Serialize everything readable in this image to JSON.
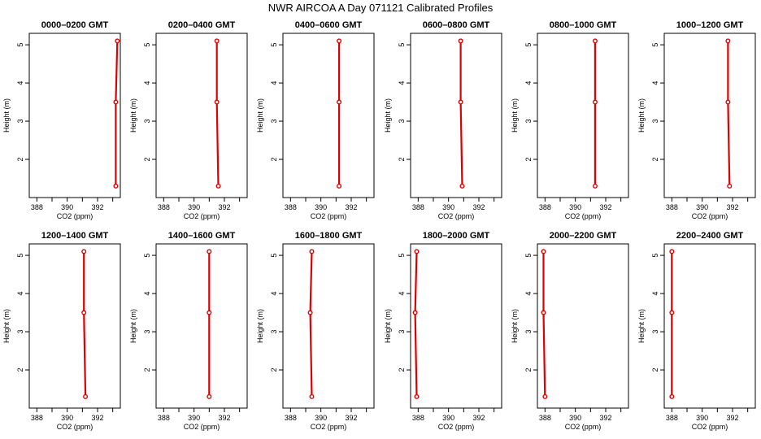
{
  "title": "NWR AIRCOA A  Day 071121  Calibrated Profiles",
  "colors": {
    "profile": "#dd0000",
    "axis": "#000000"
  },
  "chart_data": {
    "type": "line",
    "xlabel": "CO2 (ppm)",
    "ylabel": "Height (m)",
    "xlim": [
      387.5,
      393.5
    ],
    "ylim": [
      1.0,
      5.3
    ],
    "x_ticks": [
      388,
      390,
      392
    ],
    "y_ticks": [
      2,
      3,
      4,
      5
    ],
    "heights": [
      1.3,
      3.5,
      5.1
    ],
    "panels": [
      {
        "title": "0000–0200 GMT",
        "x": [
          393.2,
          393.2,
          393.3
        ]
      },
      {
        "title": "0200–0400 GMT",
        "x": [
          391.6,
          391.5,
          391.5
        ]
      },
      {
        "title": "0400–0600 GMT",
        "x": [
          391.2,
          391.2,
          391.2
        ]
      },
      {
        "title": "0600–0800 GMT",
        "x": [
          390.9,
          390.8,
          390.8
        ]
      },
      {
        "title": "0800–1000 GMT",
        "x": [
          391.3,
          391.3,
          391.3
        ]
      },
      {
        "title": "1000–1200 GMT",
        "x": [
          391.8,
          391.7,
          391.7
        ]
      },
      {
        "title": "1200–1400 GMT",
        "x": [
          391.2,
          391.1,
          391.1
        ]
      },
      {
        "title": "1400–1600 GMT",
        "x": [
          391.0,
          391.0,
          391.0
        ]
      },
      {
        "title": "1600–1800 GMT",
        "x": [
          389.4,
          389.3,
          389.4
        ]
      },
      {
        "title": "1800–2000 GMT",
        "x": [
          387.9,
          387.8,
          387.9
        ]
      },
      {
        "title": "2000–2200 GMT",
        "x": [
          388.0,
          387.9,
          387.9
        ]
      },
      {
        "title": "2200–2400 GMT",
        "x": [
          388.0,
          388.0,
          388.0
        ]
      }
    ]
  }
}
